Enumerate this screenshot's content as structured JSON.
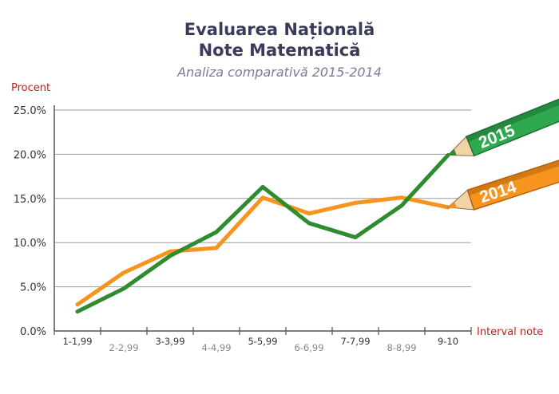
{
  "chart_data": {
    "type": "line",
    "title_line1": "Evaluarea Națională",
    "title_line2": "Note Matematică",
    "subtitle": "Analiza comparativă 2015-2014",
    "ylabel": "Procent",
    "xlabel": "Interval note",
    "categories": [
      "1-1,99",
      "2-2,99",
      "3-3,99",
      "4-4,99",
      "5-5,99",
      "6-6,99",
      "7-7,99",
      "8-8,99",
      "9-10"
    ],
    "y_ticks": [
      "0.0%",
      "5.0%",
      "10.0%",
      "15.0%",
      "20.0%",
      "25.0%"
    ],
    "ylim": [
      0,
      25
    ],
    "grid": true,
    "series": [
      {
        "name": "2014",
        "color": "#f7941d",
        "values": [
          3.0,
          6.6,
          9.0,
          9.4,
          15.1,
          13.3,
          14.5,
          15.1,
          14.0
        ]
      },
      {
        "name": "2015",
        "color": "#2e8b2e",
        "values": [
          2.2,
          4.8,
          8.5,
          11.2,
          16.3,
          12.2,
          10.6,
          14.2,
          19.9
        ]
      }
    ]
  }
}
